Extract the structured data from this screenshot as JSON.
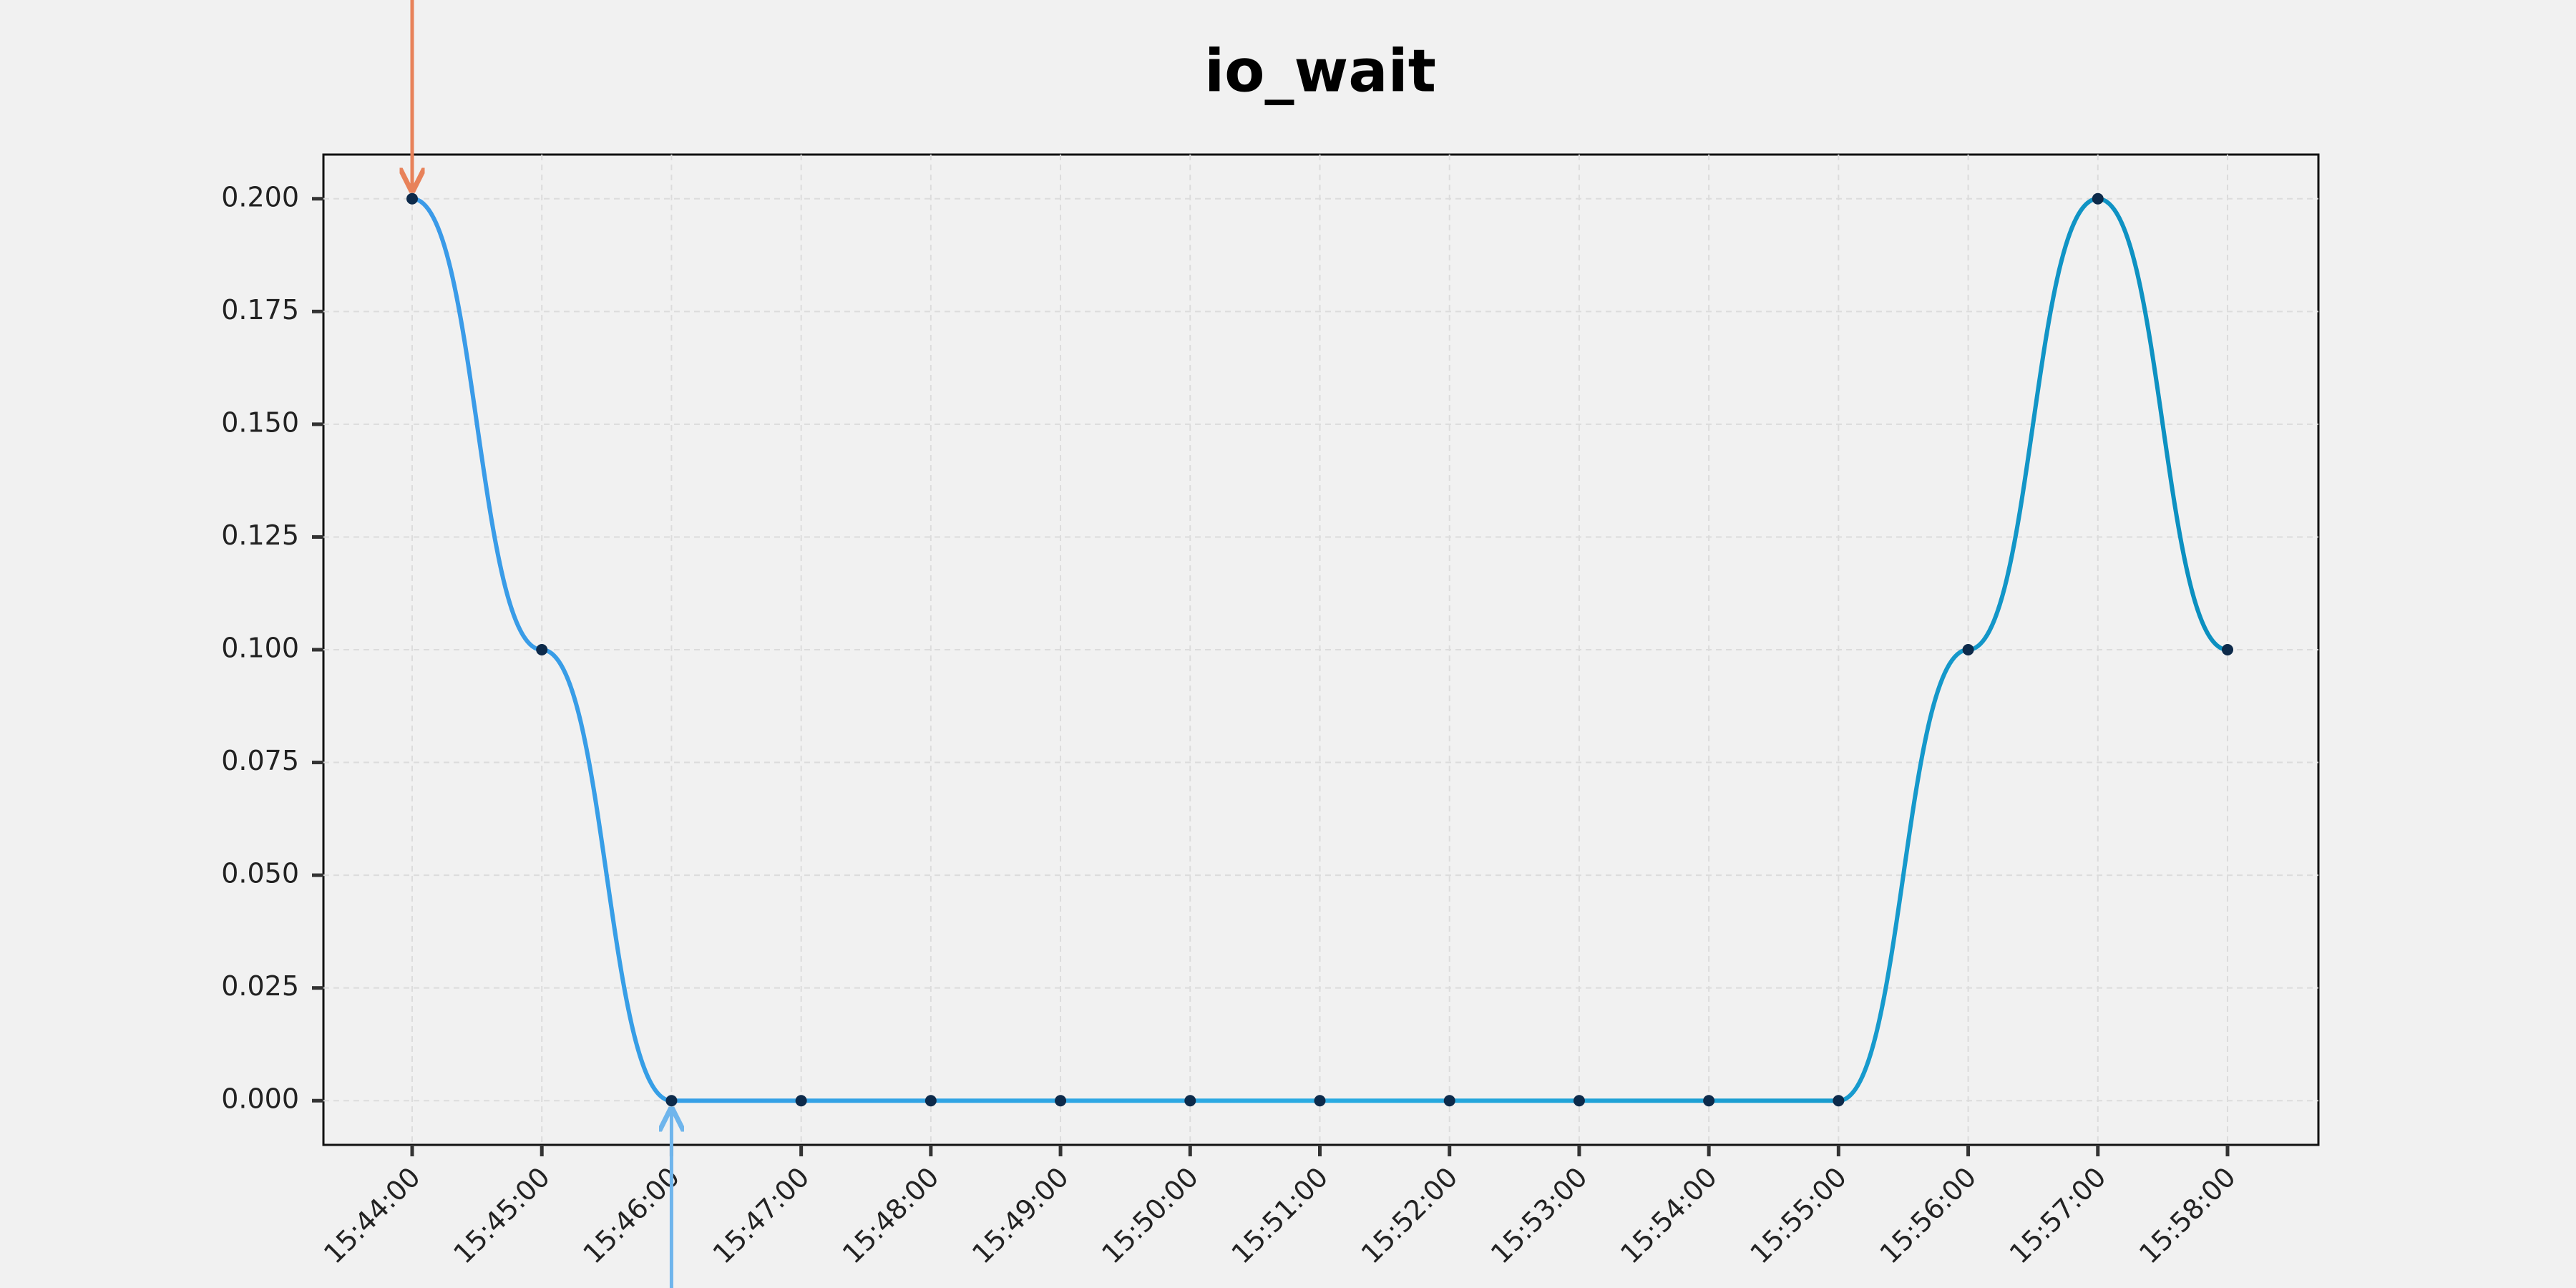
{
  "chart_data": {
    "type": "line",
    "title": "io_wait",
    "categories": [
      "15:44:00",
      "15:45:00",
      "15:46:00",
      "15:47:00",
      "15:48:00",
      "15:49:00",
      "15:50:00",
      "15:51:00",
      "15:52:00",
      "15:53:00",
      "15:54:00",
      "15:55:00",
      "15:56:00",
      "15:57:00",
      "15:58:00"
    ],
    "values": [
      0.2,
      0.1,
      0,
      0,
      0,
      0,
      0,
      0,
      0,
      0,
      0,
      0,
      0.1,
      0.2,
      0.1
    ],
    "colors": [
      "#3b9ae8",
      "#29abe2",
      "#0b8fbf"
    ],
    "marker_color": "#0d2a4a",
    "ylim": [
      -0.0098,
      0.2098
    ],
    "yticks": [
      {
        "value": 0,
        "label": "0.000"
      },
      {
        "value": 0.025,
        "label": "0.025"
      },
      {
        "value": 0.05,
        "label": "0.050"
      },
      {
        "value": 0.075,
        "label": "0.075"
      },
      {
        "value": 0.1,
        "label": "0.100"
      },
      {
        "value": 0.125,
        "label": "0.125"
      },
      {
        "value": 0.15,
        "label": "0.150"
      },
      {
        "value": 0.175,
        "label": "0.175"
      },
      {
        "value": 0.2,
        "label": "0.200"
      }
    ],
    "grid": true
  }
}
